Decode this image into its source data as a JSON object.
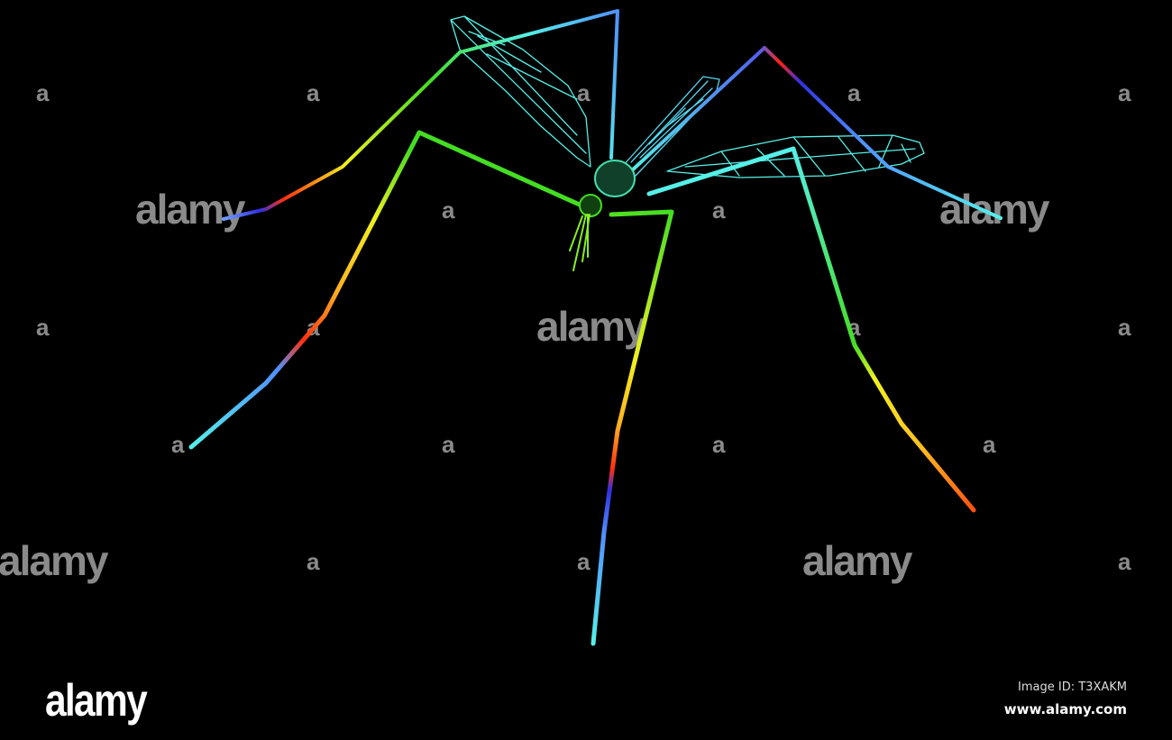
{
  "watermark": {
    "tile_letter": "a",
    "tile_word": "alamy",
    "logo": "alamy",
    "image_id": "Image ID: T3XAKM",
    "site": "www.alamy.com"
  },
  "colors": {
    "background": "#000000",
    "cyan": "#55f0e8",
    "green": "#44dd22",
    "yellow": "#f0f020",
    "red": "#ff2a10",
    "blue": "#3030e0"
  }
}
